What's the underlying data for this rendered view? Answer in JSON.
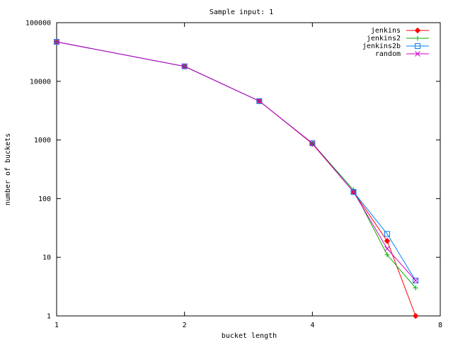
{
  "chart_data": {
    "type": "line",
    "title": "Sample input: 1",
    "xlabel": "bucket length",
    "ylabel": "number of buckets",
    "xscale": "log2",
    "yscale": "log10",
    "xlim": [
      1,
      8
    ],
    "ylim": [
      1,
      100000
    ],
    "xticks": [
      1,
      2,
      4,
      8
    ],
    "xtick_labels": [
      "1",
      "2",
      "4",
      "8"
    ],
    "yticks": [
      1,
      10,
      100,
      1000,
      10000,
      100000
    ],
    "ytick_labels": [
      "1",
      "10",
      "100",
      "1000",
      "10000",
      "100000"
    ],
    "grid": false,
    "legend_position": "top-right",
    "series": [
      {
        "name": "jenkins",
        "color": "#ff0000",
        "marker": "diamond",
        "x": [
          1,
          2,
          3,
          4,
          5,
          6,
          7
        ],
        "y": [
          47000,
          18000,
          4600,
          860,
          130,
          19,
          1
        ]
      },
      {
        "name": "jenkins2",
        "color": "#00b000",
        "marker": "plus",
        "x": [
          1,
          2,
          3,
          4,
          5,
          6,
          7
        ],
        "y": [
          47000,
          18000,
          4600,
          880,
          140,
          11,
          3
        ]
      },
      {
        "name": "jenkins2b",
        "color": "#0080ff",
        "marker": "square",
        "x": [
          1,
          2,
          3,
          4,
          5,
          6,
          7
        ],
        "y": [
          47000,
          18000,
          4600,
          880,
          130,
          25,
          4
        ]
      },
      {
        "name": "random",
        "color": "#cc00cc",
        "marker": "cross",
        "x": [
          1,
          2,
          3,
          4,
          5,
          6,
          7
        ],
        "y": [
          47000,
          18000,
          4600,
          880,
          130,
          14,
          4
        ]
      }
    ]
  }
}
